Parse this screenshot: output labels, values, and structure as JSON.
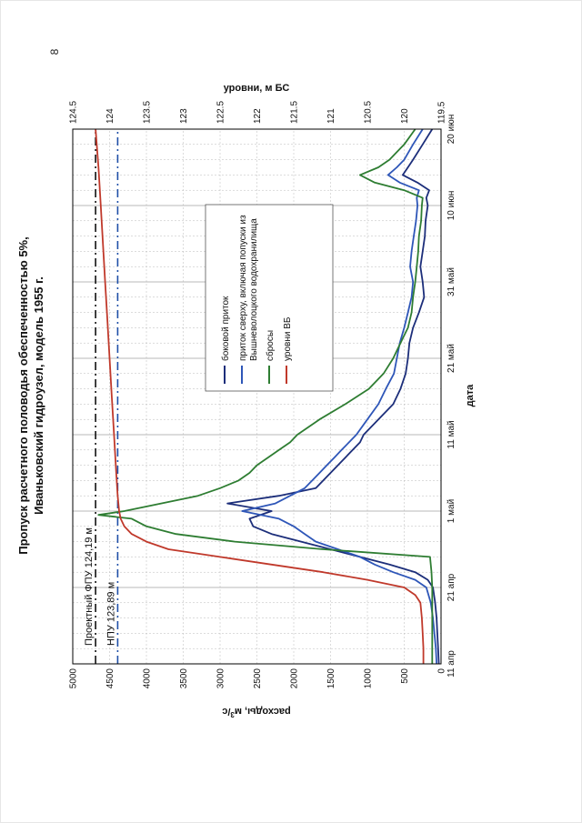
{
  "page_number": "8",
  "colors": {
    "side_inflow": "#1c2e7a",
    "upper_inflow": "#2e56b8",
    "releases": "#2e7d32",
    "levels": "#c0392b",
    "fpu_line": "#111111",
    "npu_line": "#1f4fa8",
    "grid": "#b8b8b8"
  },
  "chart_data": {
    "type": "line",
    "title": [
      "Пропуск расчетного половодья обеспеченностью 5%,",
      "Иваньковский гидроузел, модель 1955 г."
    ],
    "xlabel": "дата",
    "ylabel": "расходы, м3/с",
    "ylabel_main": "расходы, м",
    "ylabel_sup": "3",
    "ylabel_tail": "/с",
    "y2label": "уровни, м БС",
    "x_domain": [
      0,
      70
    ],
    "x_ticks": [
      {
        "day": 0,
        "label": "11 апр"
      },
      {
        "day": 10,
        "label": "21 апр"
      },
      {
        "day": 20,
        "label": "1 май"
      },
      {
        "day": 30,
        "label": "11 май"
      },
      {
        "day": 40,
        "label": "21 май"
      },
      {
        "day": 50,
        "label": "31 май"
      },
      {
        "day": 60,
        "label": "10 июн"
      },
      {
        "day": 70,
        "label": "20 июн"
      }
    ],
    "ylim": [
      0,
      5000
    ],
    "y_ticks": [
      "0",
      "500",
      "1000",
      "1500",
      "2000",
      "2500",
      "3000",
      "3500",
      "4000",
      "4500",
      "5000"
    ],
    "y2lim": [
      119.5,
      124.5
    ],
    "y2_ticks": [
      "119.5",
      "120",
      "120.5",
      "121",
      "121.5",
      "122",
      "122.5",
      "123",
      "123.5",
      "124",
      "124.5"
    ],
    "grid": true,
    "legend_position": "top-right",
    "series": [
      {
        "name": "боковой приток",
        "axis": "left",
        "color_key": "side_inflow",
        "x": [
          0,
          2,
          4,
          6,
          8,
          10,
          11,
          12,
          13,
          14,
          15,
          16,
          17,
          18,
          19,
          20,
          21,
          22,
          23,
          24,
          25,
          26,
          27,
          28,
          29,
          30,
          32,
          34,
          36,
          38,
          40,
          42,
          44,
          46,
          48,
          50,
          52,
          54,
          56,
          58,
          60,
          61,
          62,
          63,
          64,
          65,
          66,
          68,
          70
        ],
        "values": [
          30,
          40,
          50,
          60,
          80,
          110,
          180,
          350,
          700,
          1100,
          1500,
          1900,
          2300,
          2550,
          2600,
          2300,
          2900,
          2200,
          1700,
          1600,
          1500,
          1400,
          1300,
          1200,
          1100,
          1050,
          850,
          650,
          550,
          480,
          450,
          430,
          380,
          300,
          230,
          250,
          280,
          250,
          220,
          210,
          180,
          200,
          160,
          320,
          520,
          450,
          380,
          250,
          120
        ]
      },
      {
        "name": "приток сверху, включая попуски из Вышневолоцкого водохранилища",
        "axis": "left",
        "color_key": "upper_inflow",
        "x": [
          0,
          2,
          4,
          6,
          8,
          10,
          11,
          12,
          13,
          14,
          15,
          16,
          17,
          18,
          19,
          20,
          21,
          22,
          23,
          24,
          25,
          26,
          27,
          28,
          29,
          30,
          32,
          34,
          36,
          38,
          40,
          42,
          44,
          46,
          48,
          50,
          52,
          54,
          56,
          58,
          60,
          61,
          62,
          63,
          64,
          65,
          66,
          68,
          70
        ],
        "values": [
          60,
          70,
          90,
          110,
          140,
          200,
          350,
          650,
          900,
          1100,
          1400,
          1700,
          1850,
          2000,
          2200,
          2700,
          2250,
          2050,
          1850,
          1750,
          1650,
          1550,
          1450,
          1350,
          1250,
          1150,
          1000,
          850,
          750,
          640,
          600,
          560,
          500,
          450,
          400,
          380,
          420,
          400,
          370,
          340,
          320,
          330,
          300,
          560,
          720,
          600,
          500,
          380,
          250
        ]
      },
      {
        "name": "сбросы",
        "axis": "left",
        "color_key": "releases",
        "x": [
          0,
          2,
          4,
          6,
          8,
          10,
          12,
          13,
          14,
          15,
          16,
          17,
          18,
          19,
          19.5,
          20,
          21,
          22,
          23,
          24,
          25,
          26,
          27,
          28,
          29,
          30,
          32,
          34,
          36,
          38,
          40,
          42,
          44,
          46,
          48,
          50,
          52,
          54,
          56,
          58,
          60,
          61,
          62,
          63,
          64,
          65,
          66,
          68,
          70
        ],
        "values": [
          120,
          120,
          120,
          120,
          120,
          120,
          130,
          140,
          150,
          1600,
          2800,
          3600,
          4000,
          4200,
          4650,
          4300,
          3800,
          3300,
          3000,
          2750,
          2600,
          2500,
          2350,
          2200,
          2050,
          1950,
          1650,
          1300,
          980,
          780,
          650,
          550,
          450,
          400,
          380,
          350,
          330,
          310,
          300,
          270,
          260,
          250,
          500,
          900,
          1100,
          850,
          700,
          500,
          350
        ]
      },
      {
        "name": "уровни ВБ",
        "axis": "right",
        "color_key": "levels",
        "x": [
          0,
          2,
          4,
          6,
          8,
          9,
          10,
          11,
          12,
          13,
          14,
          15,
          16,
          17,
          18,
          19,
          20,
          22,
          25,
          30,
          35,
          40,
          45,
          50,
          55,
          60,
          65,
          70
        ],
        "values": [
          119.74,
          119.74,
          119.75,
          119.76,
          119.78,
          119.85,
          120.0,
          120.5,
          121.1,
          121.8,
          122.5,
          123.2,
          123.5,
          123.7,
          123.8,
          123.85,
          123.87,
          123.89,
          123.91,
          123.94,
          123.97,
          124.0,
          124.03,
          124.06,
          124.09,
          124.12,
          124.15,
          124.19
        ]
      }
    ],
    "reference_lines": [
      {
        "label": "Проектный ФПУ 124,19 м",
        "value": 4690,
        "style": "dash-dot",
        "color_key": "fpu_line"
      },
      {
        "label": "НПУ 123,89 м",
        "value": 4390,
        "style": "dash-dot",
        "color_key": "npu_line"
      }
    ]
  }
}
